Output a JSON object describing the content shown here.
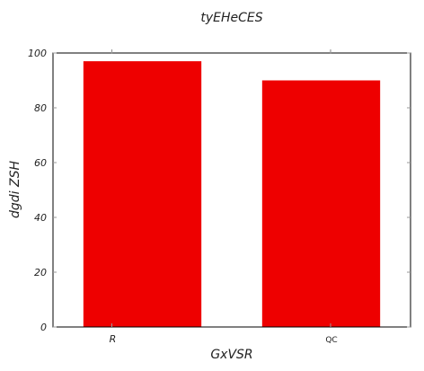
{
  "chart_data": {
    "type": "bar",
    "title": "tyEHeCES",
    "xlabel": "GxVSR",
    "ylabel": "dgdi  ZSH",
    "categories": [
      "R",
      "QC"
    ],
    "values": [
      97,
      90
    ],
    "ylim": [
      0,
      100
    ],
    "yticks": [
      0,
      20,
      40,
      60,
      80,
      100
    ],
    "bar_color": "#ee0000",
    "grid": false
  }
}
